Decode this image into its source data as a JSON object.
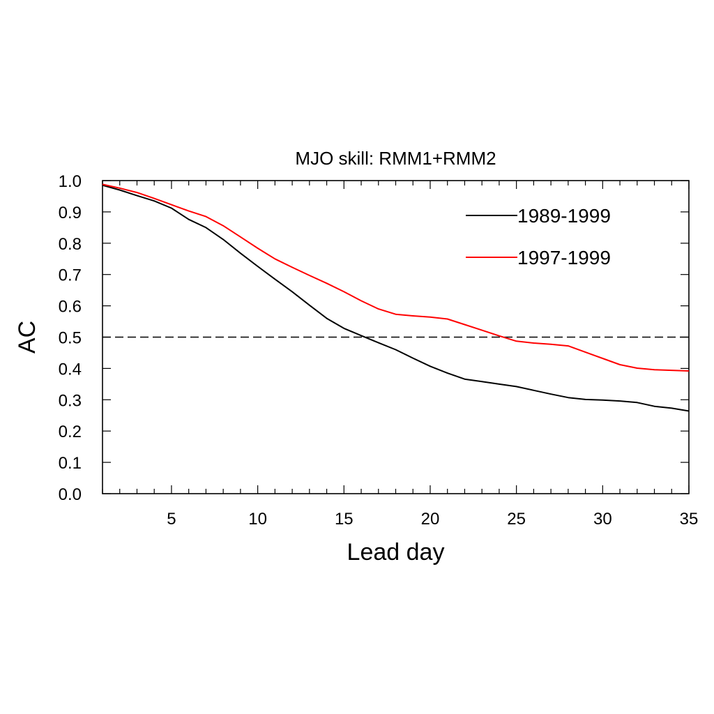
{
  "chart_data": {
    "type": "line",
    "title": "MJO skill: RMM1+RMM2",
    "xlabel": "Lead day",
    "ylabel": "AC",
    "xlim": [
      1,
      35
    ],
    "ylim": [
      0.0,
      1.0
    ],
    "xticks": [
      5,
      10,
      15,
      20,
      25,
      30,
      35
    ],
    "xtick_labels": [
      "5",
      "10",
      "15",
      "20",
      "25",
      "30",
      "35"
    ],
    "yticks": [
      0.0,
      0.1,
      0.2,
      0.3,
      0.4,
      0.5,
      0.6,
      0.7,
      0.8,
      0.9,
      1.0
    ],
    "ytick_labels": [
      "0.0",
      "0.1",
      "0.2",
      "0.3",
      "0.4",
      "0.5",
      "0.6",
      "0.7",
      "0.8",
      "0.9",
      "1.0"
    ],
    "grid": false,
    "legend_position": "top-right",
    "reference_line": {
      "y": 0.5,
      "style": "dashed",
      "color": "#000000"
    },
    "x": [
      1,
      2,
      3,
      4,
      5,
      6,
      7,
      8,
      9,
      10,
      11,
      12,
      13,
      14,
      15,
      16,
      17,
      18,
      19,
      20,
      21,
      22,
      23,
      24,
      25,
      26,
      27,
      28,
      29,
      30,
      31,
      32,
      33,
      34,
      35
    ],
    "series": [
      {
        "name": "1989-1999",
        "color": "#000000",
        "values": [
          0.985,
          0.97,
          0.952,
          0.935,
          0.912,
          0.876,
          0.85,
          0.812,
          0.768,
          0.726,
          0.685,
          0.645,
          0.602,
          0.56,
          0.528,
          0.505,
          0.482,
          0.46,
          0.433,
          0.407,
          0.385,
          0.366,
          0.358,
          0.35,
          0.342,
          0.33,
          0.318,
          0.307,
          0.301,
          0.299,
          0.296,
          0.291,
          0.279,
          0.273,
          0.264
        ]
      },
      {
        "name": "1997-1999",
        "color": "#ff0000",
        "values": [
          0.988,
          0.976,
          0.962,
          0.943,
          0.923,
          0.903,
          0.885,
          0.856,
          0.82,
          0.784,
          0.75,
          0.723,
          0.697,
          0.672,
          0.645,
          0.616,
          0.59,
          0.573,
          0.568,
          0.564,
          0.558,
          0.54,
          0.522,
          0.504,
          0.487,
          0.481,
          0.477,
          0.472,
          0.452,
          0.432,
          0.412,
          0.401,
          0.396,
          0.394,
          0.392
        ]
      }
    ]
  }
}
